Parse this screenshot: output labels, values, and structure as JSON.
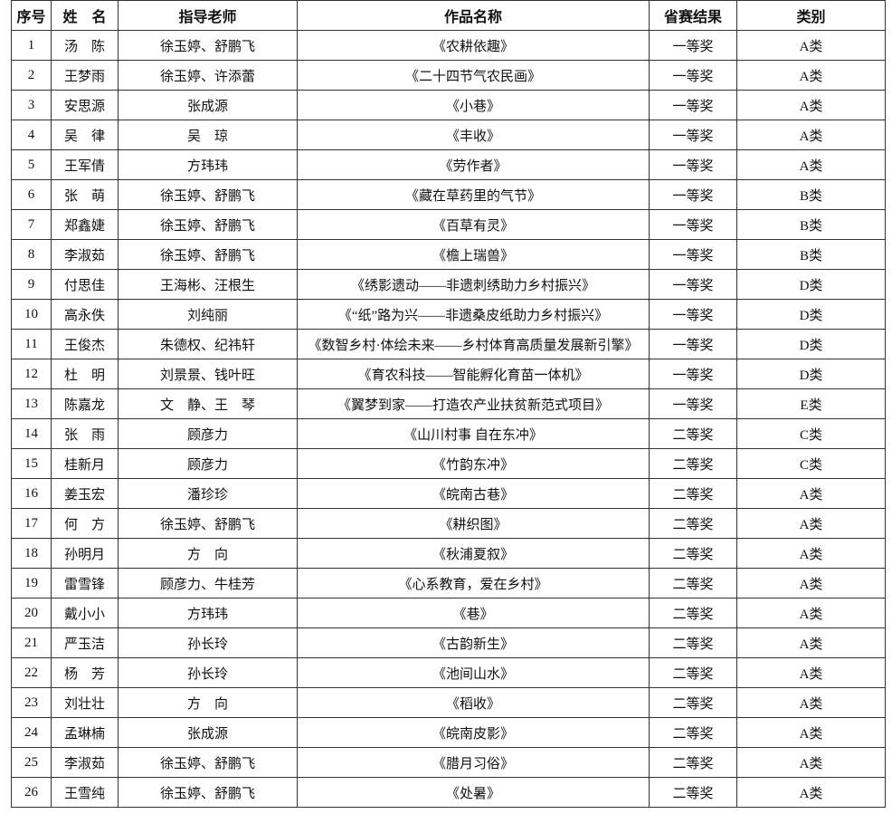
{
  "table": {
    "header": [
      "序号",
      "姓　名",
      "指导老师",
      "作品名称",
      "省赛结果",
      "类别"
    ],
    "rows": [
      [
        1,
        "汤　陈",
        "徐玉婷、舒鹏飞",
        "《农耕依趣》",
        "一等奖",
        "A类"
      ],
      [
        2,
        "王梦雨",
        "徐玉婷、许添蕾",
        "《二十四节气农民画》",
        "一等奖",
        "A类"
      ],
      [
        3,
        "安思源",
        "张成源",
        "《小巷》",
        "一等奖",
        "A类"
      ],
      [
        4,
        "吴　律",
        "吴　琼",
        "《丰收》",
        "一等奖",
        "A类"
      ],
      [
        5,
        "王军倩",
        "方玮玮",
        "《劳作者》",
        "一等奖",
        "A类"
      ],
      [
        6,
        "张　萌",
        "徐玉婷、舒鹏飞",
        "《藏在草药里的气节》",
        "一等奖",
        "B类"
      ],
      [
        7,
        "郑鑫婕",
        "徐玉婷、舒鹏飞",
        "《百草有灵》",
        "一等奖",
        "B类"
      ],
      [
        8,
        "李淑茹",
        "徐玉婷、舒鹏飞",
        "《檐上瑞兽》",
        "一等奖",
        "B类"
      ],
      [
        9,
        "付思佳",
        "王海彬、汪根生",
        "《绣影遗动——非遗刺绣助力乡村振兴》",
        "一等奖",
        "D类"
      ],
      [
        10,
        "高永佚",
        "刘纯丽",
        "《“纸”路为兴——非遗桑皮纸助力乡村振兴》",
        "一等奖",
        "D类"
      ],
      [
        11,
        "王俊杰",
        "朱德权、纪祎轩",
        "《数智乡村·体绘未来——乡村体育高质量发展新引擎》",
        "一等奖",
        "D类"
      ],
      [
        12,
        "杜　明",
        "刘景景、钱叶旺",
        "《育农科技——智能孵化育苗一体机》",
        "一等奖",
        "D类"
      ],
      [
        13,
        "陈嘉龙",
        "文　静、王　琴",
        "《翼梦到家——打造农产业扶贫新范式项目》",
        "一等奖",
        "E类"
      ],
      [
        14,
        "张　雨",
        "顾彦力",
        "《山川村事 自在东冲》",
        "二等奖",
        "C类"
      ],
      [
        15,
        "桂新月",
        "顾彦力",
        "《竹韵东冲》",
        "二等奖",
        "C类"
      ],
      [
        16,
        "姜玉宏",
        "潘珍珍",
        "《皖南古巷》",
        "二等奖",
        "A类"
      ],
      [
        17,
        "何　方",
        "徐玉婷、舒鹏飞",
        "《耕织图》",
        "二等奖",
        "A类"
      ],
      [
        18,
        "孙明月",
        "方　向",
        "《秋浦夏叙》",
        "二等奖",
        "A类"
      ],
      [
        19,
        "雷雪锋",
        "顾彦力、牛桂芳",
        "《心系教育，爱在乡村》",
        "二等奖",
        "A类"
      ],
      [
        20,
        "戴小小",
        "方玮玮",
        "《巷》",
        "二等奖",
        "A类"
      ],
      [
        21,
        "严玉洁",
        "孙长玲",
        "《古韵新生》",
        "二等奖",
        "A类"
      ],
      [
        22,
        "杨　芳",
        "孙长玲",
        "《池间山水》",
        "二等奖",
        "A类"
      ],
      [
        23,
        "刘壮壮",
        "方　向",
        "《稻收》",
        "二等奖",
        "A类"
      ],
      [
        24,
        "孟琳楠",
        "张成源",
        "《皖南皮影》",
        "二等奖",
        "A类"
      ],
      [
        25,
        "李淑茹",
        "徐玉婷、舒鹏飞",
        "《腊月习俗》",
        "二等奖",
        "A类"
      ],
      [
        26,
        "王雪纯",
        "徐玉婷、舒鹏飞",
        "《处暑》",
        "二等奖",
        "A类"
      ]
    ]
  }
}
